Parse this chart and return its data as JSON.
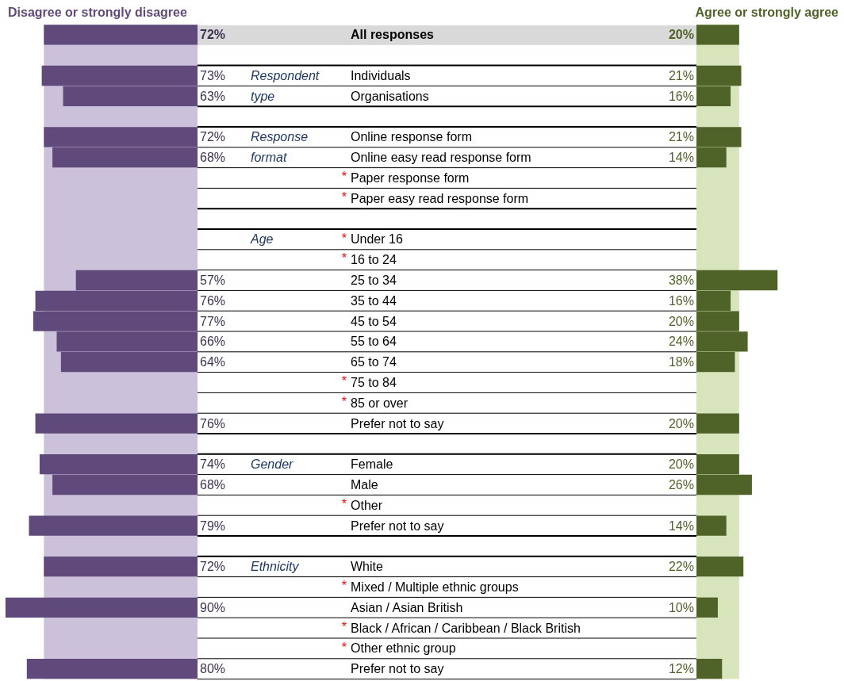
{
  "chart_data": [
    {
      "type": "bar",
      "orientation": "horizontal",
      "legend": false,
      "tick_labels": "y",
      "categories": [
        "All responses",
        null,
        "Individuals",
        "Organisations",
        null,
        "Online response form",
        "Online easy read response form",
        "Paper response form",
        "Paper easy read response form",
        null,
        "Under 16",
        "16 to 24",
        "25 to 34",
        "35 to 44",
        "45 to 54",
        "55 to 64",
        "65 to 74",
        "75 to 84",
        "85 or over",
        "Prefer not to say",
        null,
        "Female",
        "Male",
        "Other",
        "Prefer not to say",
        null,
        "White",
        "Mixed / Multiple ethnic groups",
        "Asian / Asian British",
        "Black / African / Caribbean / Black British",
        "Other ethnic group",
        "Prefer not to say"
      ],
      "y2_categories": [
        null,
        null,
        "Respondent",
        "type",
        null,
        "Response",
        "format",
        null,
        null,
        null,
        "Age",
        null,
        null,
        null,
        null,
        null,
        null,
        null,
        null,
        null,
        null,
        "Gender",
        null,
        null,
        null,
        null,
        "Ethnicity",
        null,
        null,
        null,
        null,
        null
      ],
      "series": [
        {
          "name": "Disagree or strongly disagree",
          "color": "#604a7b",
          "values": [
            72,
            null,
            73,
            63,
            null,
            72,
            68,
            null,
            null,
            null,
            null,
            null,
            57,
            76,
            77,
            66,
            64,
            null,
            null,
            76,
            null,
            74,
            68,
            null,
            79,
            null,
            72,
            null,
            90,
            null,
            null,
            80
          ],
          "value_labels": [
            "72%",
            null,
            "73%",
            "63%",
            null,
            "72%",
            "68%",
            null,
            null,
            null,
            null,
            null,
            "57%",
            "76%",
            "77%",
            "66%",
            "64%",
            null,
            null,
            "76%",
            null,
            "74%",
            "68%",
            null,
            "79%",
            null,
            "72%",
            null,
            "90%",
            null,
            null,
            "80%"
          ]
        }
      ],
      "bands": [
        {
          "axis": "x",
          "from": 0,
          "to": 72,
          "color": "#ccc1da"
        }
      ],
      "annotations": [
        "*",
        "*",
        "*",
        "*",
        "*",
        "*",
        "*",
        "*",
        "*",
        "*"
      ]
    },
    {
      "type": "bar",
      "orientation": "horizontal",
      "legend": false,
      "tick_labels": false,
      "categories": [
        null,
        null,
        null,
        null,
        null,
        null,
        null,
        null,
        null,
        null,
        null,
        null,
        null,
        null,
        null,
        null,
        null,
        null,
        null,
        null,
        null,
        null,
        null,
        null,
        null,
        null,
        null,
        null,
        null,
        null,
        null,
        null
      ],
      "series": [
        {
          "name": "Agree or strongly agree",
          "color": "#4f6228",
          "values": [
            20,
            null,
            21,
            16,
            null,
            21,
            14,
            null,
            null,
            null,
            null,
            null,
            38,
            16,
            20,
            24,
            18,
            null,
            null,
            20,
            null,
            20,
            26,
            null,
            14,
            null,
            22,
            null,
            10,
            null,
            null,
            12
          ],
          "value_labels": [
            "20%",
            null,
            "21%",
            "16%",
            null,
            "21%",
            "14%",
            null,
            null,
            null,
            null,
            null,
            "38%",
            "16%",
            "20%",
            "24%",
            "18%",
            null,
            null,
            "20%",
            null,
            "20%",
            "26%",
            null,
            "14%",
            null,
            "22%",
            null,
            "10%",
            null,
            null,
            "12%"
          ]
        }
      ],
      "bands": [
        {
          "axis": "x",
          "from": 0,
          "to": 20,
          "color": "#d7e4bc"
        }
      ]
    }
  ]
}
